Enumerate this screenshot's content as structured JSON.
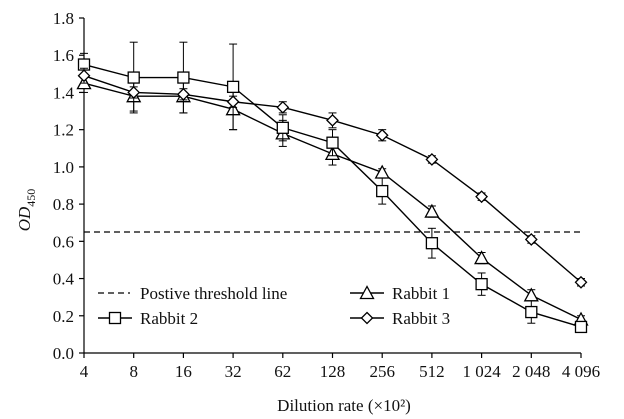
{
  "chart_data": {
    "type": "line",
    "xlabel": "Dilution rate (×10²)",
    "ylabel_main": "OD",
    "ylabel_sub": "450",
    "categories": [
      "4",
      "8",
      "16",
      "32",
      "62",
      "128",
      "256",
      "512",
      "1 024",
      "2 048",
      "4 096"
    ],
    "ylim": [
      0,
      1.8
    ],
    "yticks": [
      "0.0",
      "0.2",
      "0.4",
      "0.6",
      "0.8",
      "1.0",
      "1.2",
      "1.4",
      "1.6",
      "1.8"
    ],
    "threshold": {
      "name": "Postive threshold line",
      "value": 0.65
    },
    "series": [
      {
        "name": "Rabbit 1",
        "marker": "triangle",
        "values": [
          1.45,
          1.38,
          1.38,
          1.31,
          1.18,
          1.07,
          0.97,
          0.76,
          0.51,
          0.31,
          0.18
        ],
        "errors": [
          0.05,
          0.08,
          0.09,
          0.11,
          0.07,
          0.06,
          0.02,
          0.03,
          0.03,
          0.03,
          0.02
        ]
      },
      {
        "name": "Rabbit 2",
        "marker": "square",
        "values": [
          1.55,
          1.48,
          1.48,
          1.43,
          1.21,
          1.13,
          0.87,
          0.59,
          0.37,
          0.22,
          0.14
        ],
        "errors": [
          0.06,
          0.19,
          0.19,
          0.23,
          0.07,
          0.07,
          0.07,
          0.08,
          0.06,
          0.06,
          0.02
        ]
      },
      {
        "name": "Rabbit 3",
        "marker": "diamond",
        "values": [
          1.49,
          1.4,
          1.39,
          1.35,
          1.32,
          1.25,
          1.17,
          1.04,
          0.84,
          0.61,
          0.38
        ],
        "errors": [
          0.04,
          0.03,
          0.03,
          0.03,
          0.03,
          0.04,
          0.03,
          0.02,
          0.02,
          0.02,
          0.02
        ]
      }
    ],
    "grid": false,
    "legend_position": "bottom-left-inside",
    "colors": {
      "ink": "#000000"
    }
  }
}
